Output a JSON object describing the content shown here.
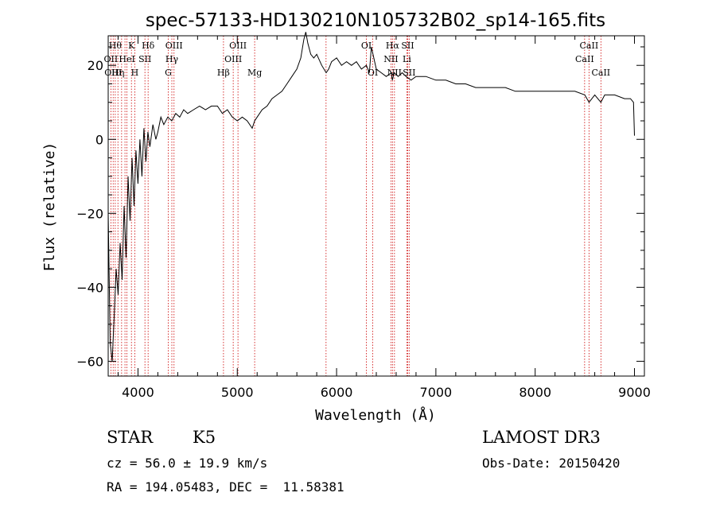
{
  "chart_data": {
    "type": "line",
    "title": "spec-57133-HD130210N105732B02_sp14-165.fits",
    "xlabel": "Wavelength (Å)",
    "ylabel": "Flux (relative)",
    "xlim": [
      3700,
      9100
    ],
    "ylim": [
      -64,
      28
    ],
    "xticks": [
      4000,
      5000,
      6000,
      7000,
      8000,
      9000
    ],
    "yticks": [
      -60,
      -40,
      -20,
      0,
      20
    ],
    "series": [
      {
        "x": [
          3700,
          3720,
          3740,
          3760,
          3780,
          3800,
          3820,
          3840,
          3860,
          3880,
          3900,
          3920,
          3940,
          3960,
          3980,
          4000,
          4020,
          4040,
          4060,
          4080,
          4100,
          4120,
          4150,
          4180,
          4200,
          4230,
          4260,
          4300,
          4340,
          4380,
          4420,
          4460,
          4500,
          4560,
          4620,
          4680,
          4740,
          4800,
          4850,
          4900,
          4950,
          5000,
          5050,
          5100,
          5150,
          5175,
          5200,
          5250,
          5300,
          5350,
          5400,
          5450,
          5500,
          5550,
          5600,
          5640,
          5670,
          5690,
          5710,
          5740,
          5770,
          5800,
          5850,
          5895,
          5920,
          5950,
          6000,
          6050,
          6100,
          6150,
          6200,
          6250,
          6300,
          6330,
          6350,
          6400,
          6450,
          6500,
          6550,
          6562,
          6580,
          6620,
          6660,
          6700,
          6750,
          6800,
          6900,
          7000,
          7100,
          7200,
          7300,
          7400,
          7500,
          7600,
          7700,
          7800,
          7900,
          8000,
          8100,
          8200,
          8300,
          8400,
          8500,
          8542,
          8600,
          8662,
          8700,
          8800,
          8900,
          8960,
          8990,
          9000
        ],
        "y": [
          -20,
          -55,
          -60,
          -48,
          -35,
          -42,
          -28,
          -38,
          -18,
          -32,
          -10,
          -22,
          -5,
          -18,
          -3,
          -12,
          0,
          -10,
          3,
          -6,
          2,
          -2,
          4,
          0,
          2,
          6,
          4,
          6,
          5,
          7,
          6,
          8,
          7,
          8,
          9,
          8,
          9,
          9,
          7,
          8,
          6,
          5,
          6,
          5,
          3,
          5,
          6,
          8,
          9,
          11,
          12,
          13,
          15,
          17,
          19,
          22,
          27,
          29,
          26,
          23,
          22,
          23,
          20,
          18,
          19,
          21,
          22,
          20,
          21,
          20,
          21,
          19,
          20,
          18,
          25,
          19,
          18,
          17,
          18,
          16,
          18,
          17,
          18,
          17,
          16,
          17,
          17,
          16,
          16,
          15,
          15,
          14,
          14,
          14,
          14,
          13,
          13,
          13,
          13,
          13,
          13,
          13,
          12,
          10,
          12,
          10,
          12,
          12,
          11,
          11,
          10,
          1
        ]
      }
    ],
    "lines": [
      {
        "wave": 3727,
        "label": "OII",
        "row": 1
      },
      {
        "wave": 3750,
        "label": "OIII",
        "row": 2
      },
      {
        "wave": 3771,
        "label": "Hθ",
        "row": 0
      },
      {
        "wave": 3798,
        "label": "Hη",
        "row": 2
      },
      {
        "wave": 3835,
        "label": "",
        "row": 0
      },
      {
        "wave": 3869,
        "label": "",
        "row": 0
      },
      {
        "wave": 3889,
        "label": "HeI",
        "row": 1
      },
      {
        "wave": 3934,
        "label": "K",
        "row": 0
      },
      {
        "wave": 3968,
        "label": "H",
        "row": 2
      },
      {
        "wave": 4070,
        "label": "SII",
        "row": 1
      },
      {
        "wave": 4102,
        "label": "Hδ",
        "row": 0
      },
      {
        "wave": 4305,
        "label": "G",
        "row": 2
      },
      {
        "wave": 4341,
        "label": "Hγ",
        "row": 1
      },
      {
        "wave": 4363,
        "label": "OIII",
        "row": 0
      },
      {
        "wave": 4861,
        "label": "Hβ",
        "row": 2
      },
      {
        "wave": 4959,
        "label": "OIII",
        "row": 1
      },
      {
        "wave": 5007,
        "label": "OIII",
        "row": 0
      },
      {
        "wave": 5175,
        "label": "Mg",
        "row": 2
      },
      {
        "wave": 5894,
        "label": "",
        "row": 0
      },
      {
        "wave": 6300,
        "label": "OI",
        "row": 0
      },
      {
        "wave": 6364,
        "label": "OI",
        "row": 2
      },
      {
        "wave": 6548,
        "label": "NII",
        "row": 1
      },
      {
        "wave": 6563,
        "label": "Hα",
        "row": 0
      },
      {
        "wave": 6583,
        "label": "NII",
        "row": 2
      },
      {
        "wave": 6708,
        "label": "Li",
        "row": 1
      },
      {
        "wave": 6716,
        "label": "SII",
        "row": 0
      },
      {
        "wave": 6731,
        "label": "SII",
        "row": 2
      },
      {
        "wave": 8498,
        "label": "CaII",
        "row": 1
      },
      {
        "wave": 8542,
        "label": "CaII",
        "row": 0
      },
      {
        "wave": 8662,
        "label": "CaII",
        "row": 2
      }
    ]
  },
  "info": {
    "object_class": "STAR",
    "subclass": "K5",
    "survey": "LAMOST DR3",
    "cz": "cz = 56.0 ± 19.9 km/s",
    "obs_date": "Obs-Date: 20150420",
    "coords": "RA = 194.05483, DEC =  11.58381"
  },
  "colors": {
    "line_marker": "#cc0000",
    "spectrum": "#000000"
  }
}
